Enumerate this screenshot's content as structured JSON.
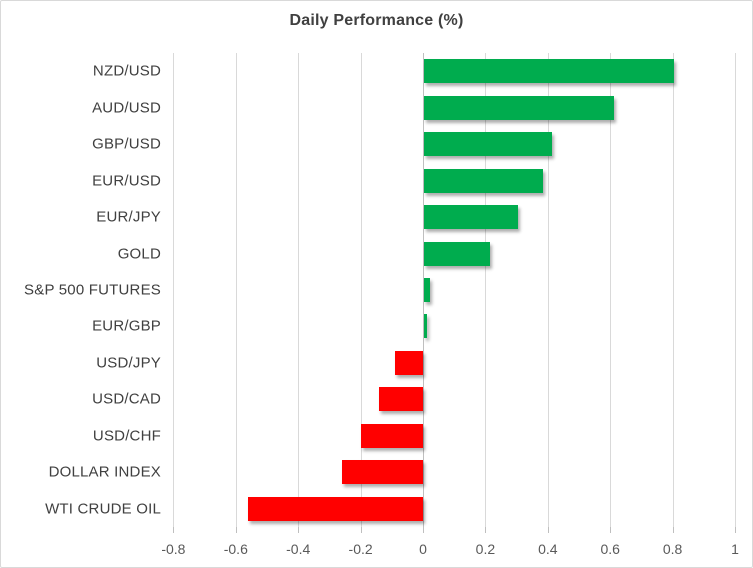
{
  "chart_data": {
    "type": "bar",
    "orientation": "horizontal",
    "title": "Daily Performance (%)",
    "categories": [
      "NZD/USD",
      "AUD/USD",
      "GBP/USD",
      "EUR/USD",
      "EUR/JPY",
      "GOLD",
      "S&P 500 FUTURES",
      "EUR/GBP",
      "USD/JPY",
      "USD/CAD",
      "USD/CHF",
      "DOLLAR INDEX",
      "WTI CRUDE OIL"
    ],
    "values": [
      0.8,
      0.61,
      0.41,
      0.38,
      0.3,
      0.21,
      0.02,
      0.01,
      -0.09,
      -0.14,
      -0.2,
      -0.26,
      -0.56
    ],
    "xlabel": "",
    "ylabel": "",
    "xlim": [
      -0.8,
      1.0
    ],
    "x_ticks": [
      "-0.8",
      "-0.6",
      "-0.4",
      "-0.2",
      "0",
      "0.2",
      "0.4",
      "0.6",
      "0.8",
      "1"
    ],
    "x_tick_values": [
      -0.8,
      -0.6,
      -0.4,
      -0.2,
      0,
      0.2,
      0.4,
      0.6,
      0.8,
      1
    ],
    "grid": true,
    "legend": false,
    "colors": {
      "positive_bar": "#00AC4E",
      "negative_bar": "#FF0000",
      "gridline": "#D9D9D9",
      "zero_axis_line": "#BFBFBF",
      "tick_mark": "#BFBFBF",
      "title_text": "#404040",
      "category_text": "#404040",
      "tick_text": "#595959",
      "background": "#FFFFFF",
      "border": "#D9D9D9"
    }
  }
}
